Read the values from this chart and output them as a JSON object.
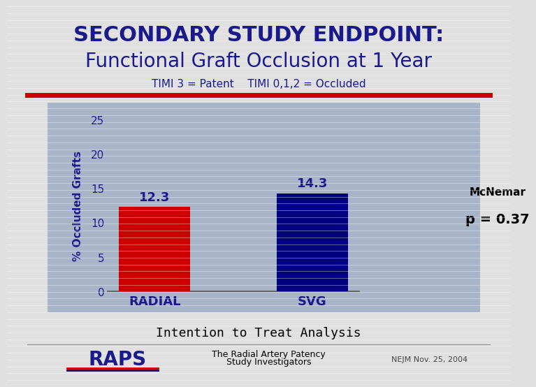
{
  "title_line1": "SECONDARY STUDY ENDPOINT:",
  "title_line2": "Functional Graft Occlusion at 1 Year",
  "subtitle": "TIMI 3 = Patent    TIMI 0,1,2 = Occluded",
  "categories": [
    "RADIAL",
    "SVG"
  ],
  "values": [
    12.3,
    14.3
  ],
  "bar_colors": [
    "#cc0000",
    "#000080"
  ],
  "ylabel": "% Occluded Grafts",
  "ylim": [
    0,
    25
  ],
  "yticks": [
    0,
    5,
    10,
    15,
    20,
    25
  ],
  "chart_bg": "#a8b4c8",
  "slide_bg": "#e0e0e0",
  "red_line_color": "#cc0000",
  "annotation_label": "McNemar",
  "annotation_value": "p = 0.37",
  "footer_text": "Intention to Treat Analysis",
  "footer_right": "NEJM Nov. 25, 2004",
  "title_color": "#1a1a8c",
  "subtitle_color": "#1a1a8c",
  "category_color": "#1a1a8c",
  "ylabel_color": "#1a1a8c",
  "ytick_color": "#1a1a8c",
  "value_label_color": "#1a1a8c"
}
